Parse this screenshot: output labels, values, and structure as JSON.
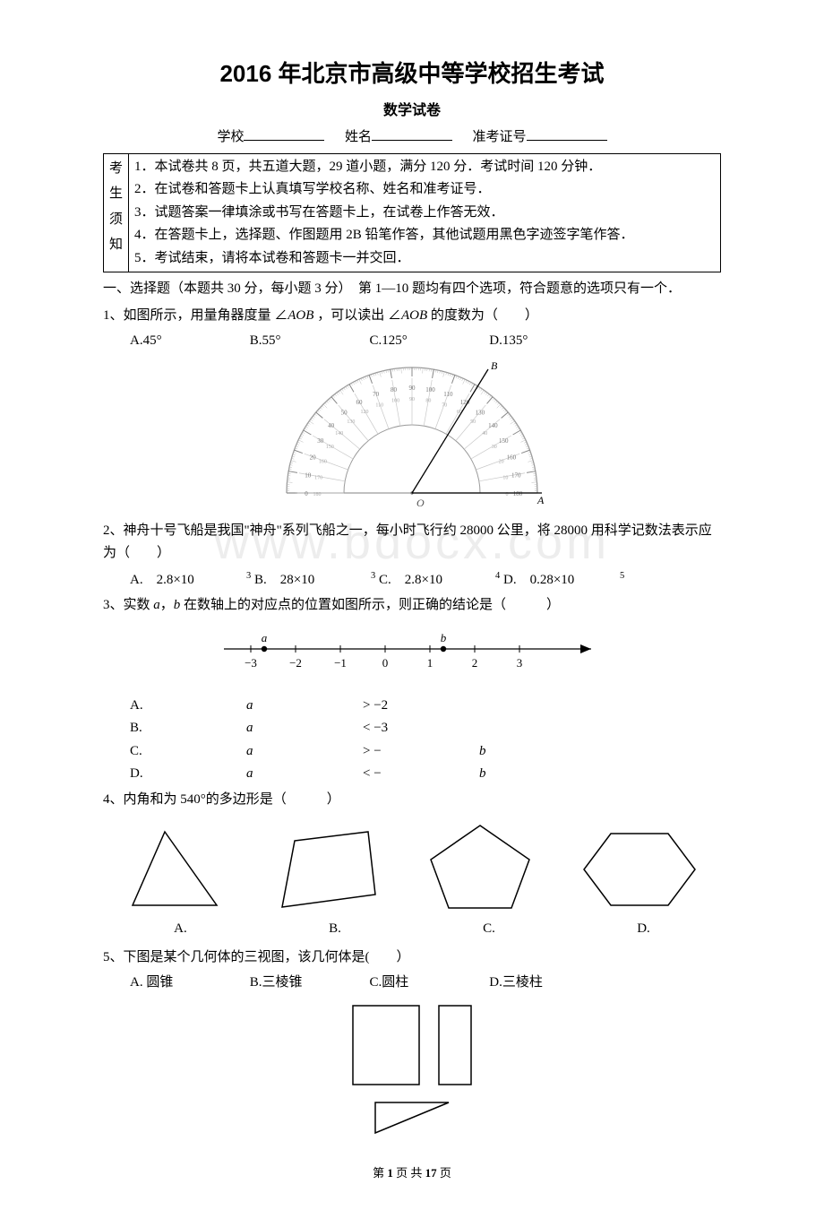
{
  "title": "2016 年北京市高级中等学校招生考试",
  "subtitle": "数学试卷",
  "fields": {
    "school": "学校",
    "name": "姓名",
    "ticket": "准考证号"
  },
  "notice": {
    "sideLabel": "考生须知",
    "items": [
      "1．本试卷共 8 页，共五道大题，29 道小题，满分 120 分．考试时间 120 分钟．",
      "2．在试卷和答题卡上认真填写学校名称、姓名和准考证号．",
      "3．试题答案一律填涂或书写在答题卡上，在试卷上作答无效．",
      "4．在答题卡上，选择题、作图题用 2B 铅笔作答，其他试题用黑色字迹签字笔作答．",
      "5．考试结束，请将本试卷和答题卡一并交回．"
    ]
  },
  "sectionHeader": "一、选择题（本题共 30 分，每小题 3 分）　第 1—10 题均有四个选项，符合题意的选项只有一个．",
  "q1": {
    "text_pre": "1、如图所示，用量角器度量 ∠",
    "aob1": "AOB",
    "text_mid": " ，可以读出 ∠",
    "aob2": "AOB",
    "text_post": " 的度数为（　　）",
    "opts": {
      "a": "A.45°",
      "b": "B.55°",
      "c": "C.125°",
      "d": "D.135°"
    }
  },
  "q2": {
    "text": "2、神舟十号飞船是我国\"神舟\"系列飞船之一，每小时飞行约 28000 公里，将 28000 用科学记数法表示应为（　　）",
    "opts": {
      "a_pre": "A.　2.8×10",
      "a_sup": "3",
      "b_pre": "B.　28×10",
      "b_sup": "3",
      "c_pre": "C.　2.8×10",
      "c_sup": "4",
      "d_pre": "D.　0.28×10",
      "d_sup": "5"
    }
  },
  "q3": {
    "text_pre": "3、实数 ",
    "a": "a",
    "comma": "，",
    "b": "b",
    "text_post": " 在数轴上的对应点的位置如图所示，则正确的结论是（　　　）",
    "numline": {
      "ticks": [
        -3,
        -2,
        -1,
        0,
        1,
        2,
        3
      ],
      "a_pos": -2.7,
      "a_label": "a",
      "b_pos": 1.3,
      "b_label": "b"
    },
    "opts": {
      "a_pre": "A. ",
      "a_var": "a",
      "a_rel": " > −2",
      "b_pre": "B. ",
      "b_var": "a",
      "b_rel": " < −3",
      "c_pre": "C. ",
      "c_var": "a",
      "c_rel": " > −",
      "c_var2": "b",
      "d_pre": "D. ",
      "d_var": "a",
      "d_rel": " < −",
      "d_var2": "b"
    }
  },
  "q4": {
    "text": "4、内角和为 540°的多边形是（　　　）",
    "labels": {
      "a": "A.",
      "b": "B.",
      "c": "C.",
      "d": "D."
    }
  },
  "q5": {
    "text": "5、下图是某个几何体的三视图，该几何体是(　　）",
    "opts": {
      "a": "A. 圆锥",
      "b": "B.三棱锥",
      "c": "C.圆柱",
      "d": "D.三棱柱"
    }
  },
  "footer": {
    "pre": "第 ",
    "cur": "1",
    "mid": " 页 共 ",
    "total": "17",
    "post": " 页"
  },
  "watermark": "www.bdocx.com",
  "colors": {
    "line": "#000000",
    "grey": "#9a9a9a",
    "lightgrey": "#c8c8c8"
  }
}
